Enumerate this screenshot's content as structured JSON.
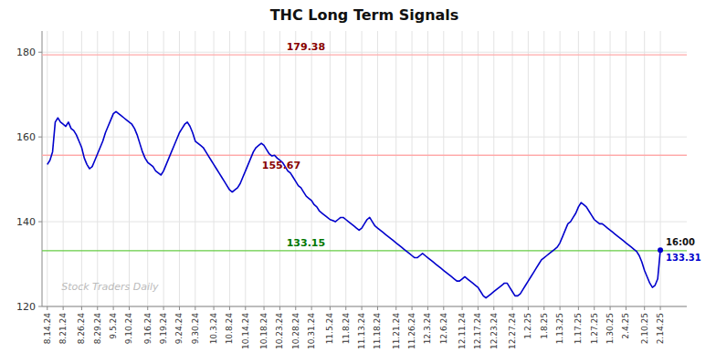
{
  "chart_data": {
    "type": "line",
    "title": "THC Long Term Signals",
    "color": "#0000cc",
    "grid": true,
    "ylim": [
      120,
      185
    ],
    "yticks": [
      120,
      140,
      160,
      180
    ],
    "watermark": "Stock Traders Daily",
    "reference_lines": [
      {
        "value": 179.38,
        "color": "#ffaaaa",
        "label": "179.38",
        "label_color": "#880000"
      },
      {
        "value": 155.67,
        "color": "#ffaaaa",
        "label": "155.67",
        "label_color": "#880000"
      },
      {
        "value": 133.15,
        "color": "#66cc44",
        "label": "133.15",
        "label_color": "#007700"
      }
    ],
    "end_marker": {
      "label": "16:00",
      "value": 133.31
    },
    "categories": [
      "8.14.24",
      null,
      null,
      null,
      null,
      null,
      "8.21.24",
      null,
      null,
      null,
      null,
      null,
      null,
      "8.26.24",
      null,
      null,
      null,
      null,
      null,
      "8.29.24",
      null,
      null,
      null,
      null,
      null,
      "9.5.24",
      null,
      null,
      null,
      null,
      null,
      "9.10.24",
      null,
      null,
      null,
      null,
      null,
      null,
      "9.16.24",
      null,
      null,
      null,
      null,
      null,
      "9.19.24",
      null,
      null,
      null,
      null,
      null,
      "9.24.24",
      null,
      null,
      null,
      null,
      null,
      "9.30.24",
      null,
      null,
      null,
      null,
      null,
      null,
      "10.3.24",
      null,
      null,
      null,
      null,
      null,
      "10.8.24",
      null,
      null,
      null,
      null,
      null,
      "10.14.24",
      null,
      null,
      null,
      null,
      null,
      null,
      "10.18.24",
      null,
      null,
      null,
      null,
      null,
      "10.23.24",
      null,
      null,
      null,
      null,
      null,
      "10.28.24",
      null,
      null,
      null,
      null,
      null,
      "10.31.24",
      null,
      null,
      null,
      null,
      null,
      null,
      "11.5.24",
      null,
      null,
      null,
      null,
      null,
      "11.8.24",
      null,
      null,
      null,
      null,
      null,
      "11.13.24",
      null,
      null,
      null,
      null,
      null,
      "11.18.24",
      null,
      null,
      null,
      null,
      null,
      null,
      "11.21.24",
      null,
      null,
      null,
      null,
      null,
      "11.26.24",
      null,
      null,
      null,
      null,
      null,
      "12.3.24",
      null,
      null,
      null,
      null,
      null,
      "12.6.24",
      null,
      null,
      null,
      null,
      null,
      null,
      "12.11.24",
      null,
      null,
      null,
      null,
      null,
      "12.17.24",
      null,
      null,
      null,
      null,
      null,
      "12.23.24",
      null,
      null,
      null,
      null,
      null,
      null,
      "12.27.24",
      null,
      null,
      null,
      null,
      null,
      "1.2.25",
      null,
      null,
      null,
      null,
      null,
      "1.8.25",
      null,
      null,
      null,
      null,
      null,
      "1.13.25",
      null,
      null,
      null,
      null,
      null,
      null,
      "1.17.25",
      null,
      null,
      null,
      null,
      null,
      "1.27.25",
      null,
      null,
      null,
      null,
      null,
      "1.30.25",
      null,
      null,
      null,
      null,
      null,
      "2.4.25",
      null,
      null,
      null,
      null,
      null,
      null,
      "2.10.25",
      null,
      null,
      null,
      null,
      null,
      "2.14.25"
    ],
    "values": [
      153.5,
      154.5,
      156.5,
      163.5,
      164.5,
      163.5,
      163.0,
      162.5,
      163.5,
      162.0,
      161.5,
      160.5,
      159.0,
      157.5,
      155.0,
      153.5,
      152.5,
      153.0,
      154.5,
      156.0,
      157.5,
      159.0,
      161.0,
      162.5,
      164.0,
      165.5,
      166.0,
      165.5,
      165.0,
      164.5,
      164.0,
      163.5,
      163.0,
      162.0,
      160.5,
      158.5,
      156.5,
      155.0,
      154.0,
      153.5,
      153.0,
      152.0,
      151.5,
      151.0,
      152.0,
      153.5,
      155.0,
      156.5,
      158.0,
      159.5,
      161.0,
      162.0,
      163.0,
      163.5,
      162.5,
      161.0,
      159.0,
      158.5,
      158.0,
      157.5,
      156.5,
      155.5,
      154.5,
      153.5,
      152.5,
      151.5,
      150.5,
      149.5,
      148.5,
      147.5,
      147.0,
      147.5,
      148.0,
      149.0,
      150.5,
      152.0,
      153.5,
      155.0,
      156.5,
      157.5,
      158.0,
      158.5,
      158.0,
      157.0,
      156.0,
      155.5,
      155.67,
      155.0,
      154.5,
      154.0,
      153.0,
      152.0,
      151.5,
      150.5,
      149.5,
      148.5,
      148.0,
      147.0,
      146.0,
      145.5,
      145.0,
      144.0,
      143.5,
      142.5,
      142.0,
      141.5,
      141.0,
      140.5,
      140.3,
      140.0,
      140.5,
      141.0,
      141.0,
      140.5,
      140.0,
      139.5,
      139.0,
      138.5,
      138.0,
      138.5,
      139.5,
      140.5,
      141.0,
      140.0,
      139.0,
      138.5,
      138.0,
      137.5,
      137.0,
      136.5,
      136.0,
      135.5,
      135.0,
      134.5,
      134.0,
      133.5,
      133.0,
      132.5,
      132.0,
      131.5,
      131.5,
      132.0,
      132.5,
      132.0,
      131.5,
      131.0,
      130.5,
      130.0,
      129.5,
      129.0,
      128.5,
      128.0,
      127.5,
      127.0,
      126.5,
      126.0,
      126.0,
      126.5,
      127.0,
      126.5,
      126.0,
      125.5,
      125.0,
      124.5,
      123.5,
      122.5,
      122.0,
      122.5,
      123.0,
      123.5,
      124.0,
      124.5,
      125.0,
      125.5,
      125.5,
      124.5,
      123.5,
      122.5,
      122.5,
      123.0,
      124.0,
      125.0,
      126.0,
      127.0,
      128.0,
      129.0,
      130.0,
      131.0,
      131.5,
      132.0,
      132.5,
      133.0,
      133.5,
      134.0,
      135.0,
      136.5,
      138.0,
      139.5,
      140.0,
      141.0,
      142.0,
      143.5,
      144.5,
      144.0,
      143.5,
      142.5,
      141.5,
      140.5,
      140.0,
      139.5,
      139.5,
      139.0,
      138.5,
      138.0,
      137.5,
      137.0,
      136.5,
      136.0,
      135.5,
      135.0,
      134.5,
      134.0,
      133.5,
      133.0,
      132.0,
      130.5,
      128.5,
      127.0,
      125.5,
      124.5,
      125.0,
      126.5,
      133.31
    ]
  }
}
